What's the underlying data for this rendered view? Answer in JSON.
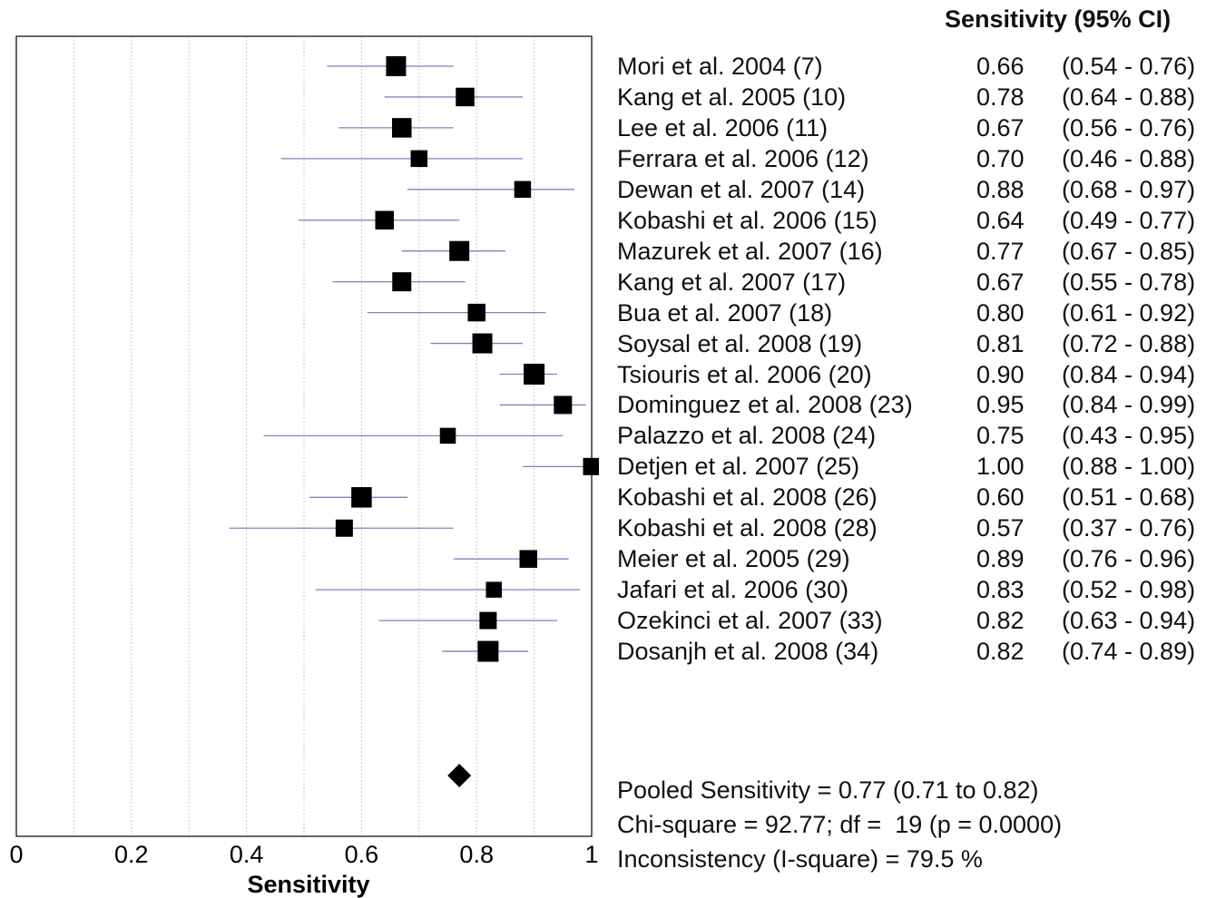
{
  "chart_data": {
    "type": "forest",
    "title": "",
    "xlabel": "Sensitivity",
    "xlim": [
      0,
      1
    ],
    "xticks": [
      "0",
      "0.2",
      "0.4",
      "0.6",
      "0.8",
      "1"
    ],
    "grid": "vertical-dotted",
    "column_header": "Sensitivity (95% CI)",
    "studies": [
      {
        "label": "Mori et al. 2004 (7)",
        "est": 0.66,
        "lo": 0.54,
        "hi": 0.76,
        "est_text": "0.66",
        "ci_text": "(0.54 - 0.76)",
        "weight": 1.0
      },
      {
        "label": "Kang et al. 2005 (10)",
        "est": 0.78,
        "lo": 0.64,
        "hi": 0.88,
        "est_text": "0.78",
        "ci_text": "(0.64 - 0.88)",
        "weight": 0.85
      },
      {
        "label": "Lee et al. 2006 (11)",
        "est": 0.67,
        "lo": 0.56,
        "hi": 0.76,
        "est_text": "0.67",
        "ci_text": "(0.56 - 0.76)",
        "weight": 0.95
      },
      {
        "label": "Ferrara et al. 2006 (12)",
        "est": 0.7,
        "lo": 0.46,
        "hi": 0.88,
        "est_text": "0.70",
        "ci_text": "(0.46 - 0.88)",
        "weight": 0.65
      },
      {
        "label": "Dewan et al. 2007 (14)",
        "est": 0.88,
        "lo": 0.68,
        "hi": 0.97,
        "est_text": "0.88",
        "ci_text": "(0.68 - 0.97)",
        "weight": 0.65
      },
      {
        "label": "Kobashi et al. 2006 (15)",
        "est": 0.64,
        "lo": 0.49,
        "hi": 0.77,
        "est_text": "0.64",
        "ci_text": "(0.49 - 0.77)",
        "weight": 0.85
      },
      {
        "label": "Mazurek et al. 2007 (16)",
        "est": 0.77,
        "lo": 0.67,
        "hi": 0.85,
        "est_text": "0.77",
        "ci_text": "(0.67 - 0.85)",
        "weight": 1.0
      },
      {
        "label": "Kang et al. 2007 (17)",
        "est": 0.67,
        "lo": 0.55,
        "hi": 0.78,
        "est_text": "0.67",
        "ci_text": "(0.55 - 0.78)",
        "weight": 0.9
      },
      {
        "label": "Bua et al. 2007 (18)",
        "est": 0.8,
        "lo": 0.61,
        "hi": 0.92,
        "est_text": "0.80",
        "ci_text": "(0.61 - 0.92)",
        "weight": 0.75
      },
      {
        "label": "Soysal et al. 2008 (19)",
        "est": 0.81,
        "lo": 0.72,
        "hi": 0.88,
        "est_text": "0.81",
        "ci_text": "(0.72 - 0.88)",
        "weight": 1.0
      },
      {
        "label": "Tsiouris et al. 2006 (20)",
        "est": 0.9,
        "lo": 0.84,
        "hi": 0.94,
        "est_text": "0.90",
        "ci_text": "(0.84 - 0.94)",
        "weight": 1.1
      },
      {
        "label": "Dominguez et al. 2008 (23)",
        "est": 0.95,
        "lo": 0.84,
        "hi": 0.99,
        "est_text": "0.95",
        "ci_text": "(0.84 - 0.99)",
        "weight": 0.8
      },
      {
        "label": "Palazzo et al. 2008 (24)",
        "est": 0.75,
        "lo": 0.43,
        "hi": 0.95,
        "est_text": "0.75",
        "ci_text": "(0.43 - 0.95)",
        "weight": 0.55
      },
      {
        "label": "Detjen et al. 2007 (25)",
        "est": 1.0,
        "lo": 0.88,
        "hi": 1.0,
        "est_text": "1.00",
        "ci_text": "(0.88 - 1.00)",
        "weight": 0.7
      },
      {
        "label": "Kobashi et al. 2008 (26)",
        "est": 0.6,
        "lo": 0.51,
        "hi": 0.68,
        "est_text": "0.60",
        "ci_text": "(0.51 - 0.68)",
        "weight": 1.05
      },
      {
        "label": "Kobashi et al. 2008 (28)",
        "est": 0.57,
        "lo": 0.37,
        "hi": 0.76,
        "est_text": "0.57",
        "ci_text": "(0.37 - 0.76)",
        "weight": 0.7
      },
      {
        "label": "Meier et al. 2005 (29)",
        "est": 0.89,
        "lo": 0.76,
        "hi": 0.96,
        "est_text": "0.89",
        "ci_text": "(0.76 - 0.96)",
        "weight": 0.75
      },
      {
        "label": "Jafari et al. 2006 (30)",
        "est": 0.83,
        "lo": 0.52,
        "hi": 0.98,
        "est_text": "0.83",
        "ci_text": "(0.52 - 0.98)",
        "weight": 0.55
      },
      {
        "label": "Ozekinci et al. 2007 (33)",
        "est": 0.82,
        "lo": 0.63,
        "hi": 0.94,
        "est_text": "0.82",
        "ci_text": "(0.63 - 0.94)",
        "weight": 0.7
      },
      {
        "label": "Dosanjh et al. 2008 (34)",
        "est": 0.82,
        "lo": 0.74,
        "hi": 0.89,
        "est_text": "0.82",
        "ci_text": "(0.74 - 0.89)",
        "weight": 1.1
      }
    ],
    "pooled": {
      "est": 0.77,
      "lo": 0.71,
      "hi": 0.82
    },
    "stats_lines": [
      "Pooled Sensitivity = 0.77 (0.71 to 0.82)",
      "Chi-square = 92.77; df =  19 (p = 0.0000)",
      "Inconsistency (I-square) = 79.5 %"
    ],
    "colors": {
      "ci_line": "#8080c0",
      "marker": "#000000",
      "grid": "#c8c8c8",
      "frame": "#000000"
    }
  }
}
